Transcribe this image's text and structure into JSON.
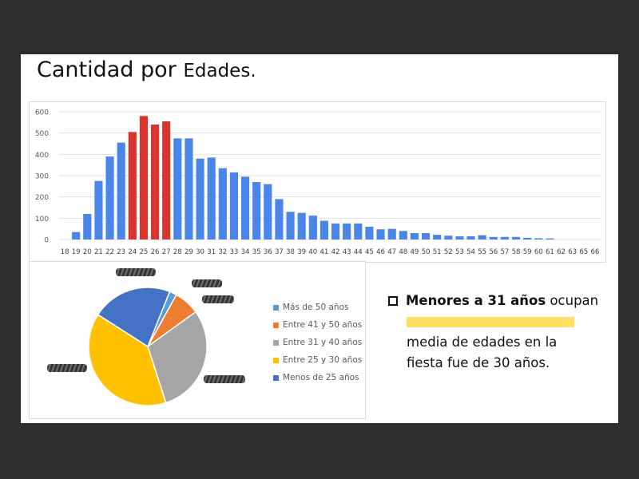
{
  "slide": {
    "title_main": "Cantidad por ",
    "title_tail": "Edades."
  },
  "note": {
    "line1_bold": "Menores a 31 años",
    "line1_rest": " ocupan",
    "line3": "media de edades en la",
    "line4": "fiesta fue de 30 años."
  },
  "colors": {
    "bar_default": "#4a86e8",
    "bar_highlight": "#d7352e",
    "gridline": "#e0e0e0",
    "highlight": "#ffe066"
  },
  "chart_data": [
    {
      "type": "bar",
      "categories": [
        "18",
        "19",
        "20",
        "21",
        "22",
        "23",
        "24",
        "25",
        "26",
        "27",
        "28",
        "29",
        "30",
        "31",
        "32",
        "33",
        "34",
        "35",
        "36",
        "37",
        "38",
        "39",
        "40",
        "41",
        "42",
        "43",
        "44",
        "45",
        "46",
        "47",
        "48",
        "49",
        "50",
        "51",
        "52",
        "53",
        "54",
        "55",
        "56",
        "57",
        "58",
        "59",
        "60",
        "61",
        "62",
        "63",
        "65",
        "66"
      ],
      "values": [
        0,
        35,
        120,
        275,
        390,
        455,
        505,
        580,
        540,
        555,
        475,
        475,
        380,
        385,
        335,
        315,
        295,
        270,
        260,
        190,
        130,
        125,
        112,
        88,
        75,
        75,
        75,
        60,
        48,
        50,
        40,
        30,
        30,
        22,
        18,
        15,
        15,
        20,
        12,
        12,
        12,
        8,
        6,
        5,
        0,
        0,
        0,
        0
      ],
      "highlight_categories": [
        "24",
        "25",
        "26",
        "27"
      ],
      "ylim": [
        0,
        600
      ],
      "yticks": [
        0,
        100,
        200,
        300,
        400,
        500,
        600
      ],
      "grid": true
    },
    {
      "type": "pie",
      "labels": [
        "Más de 50 años",
        "Entre 41 y 50 años",
        "Entre 31 y 40 años",
        "Entre 25 y 30 años",
        "Menos de 25 años"
      ],
      "values": [
        2,
        7,
        30,
        39,
        22
      ],
      "colors": [
        "#5b9bd5",
        "#ed7d31",
        "#a5a5a5",
        "#ffc000",
        "#4472c4"
      ],
      "legend_position": "right"
    }
  ]
}
